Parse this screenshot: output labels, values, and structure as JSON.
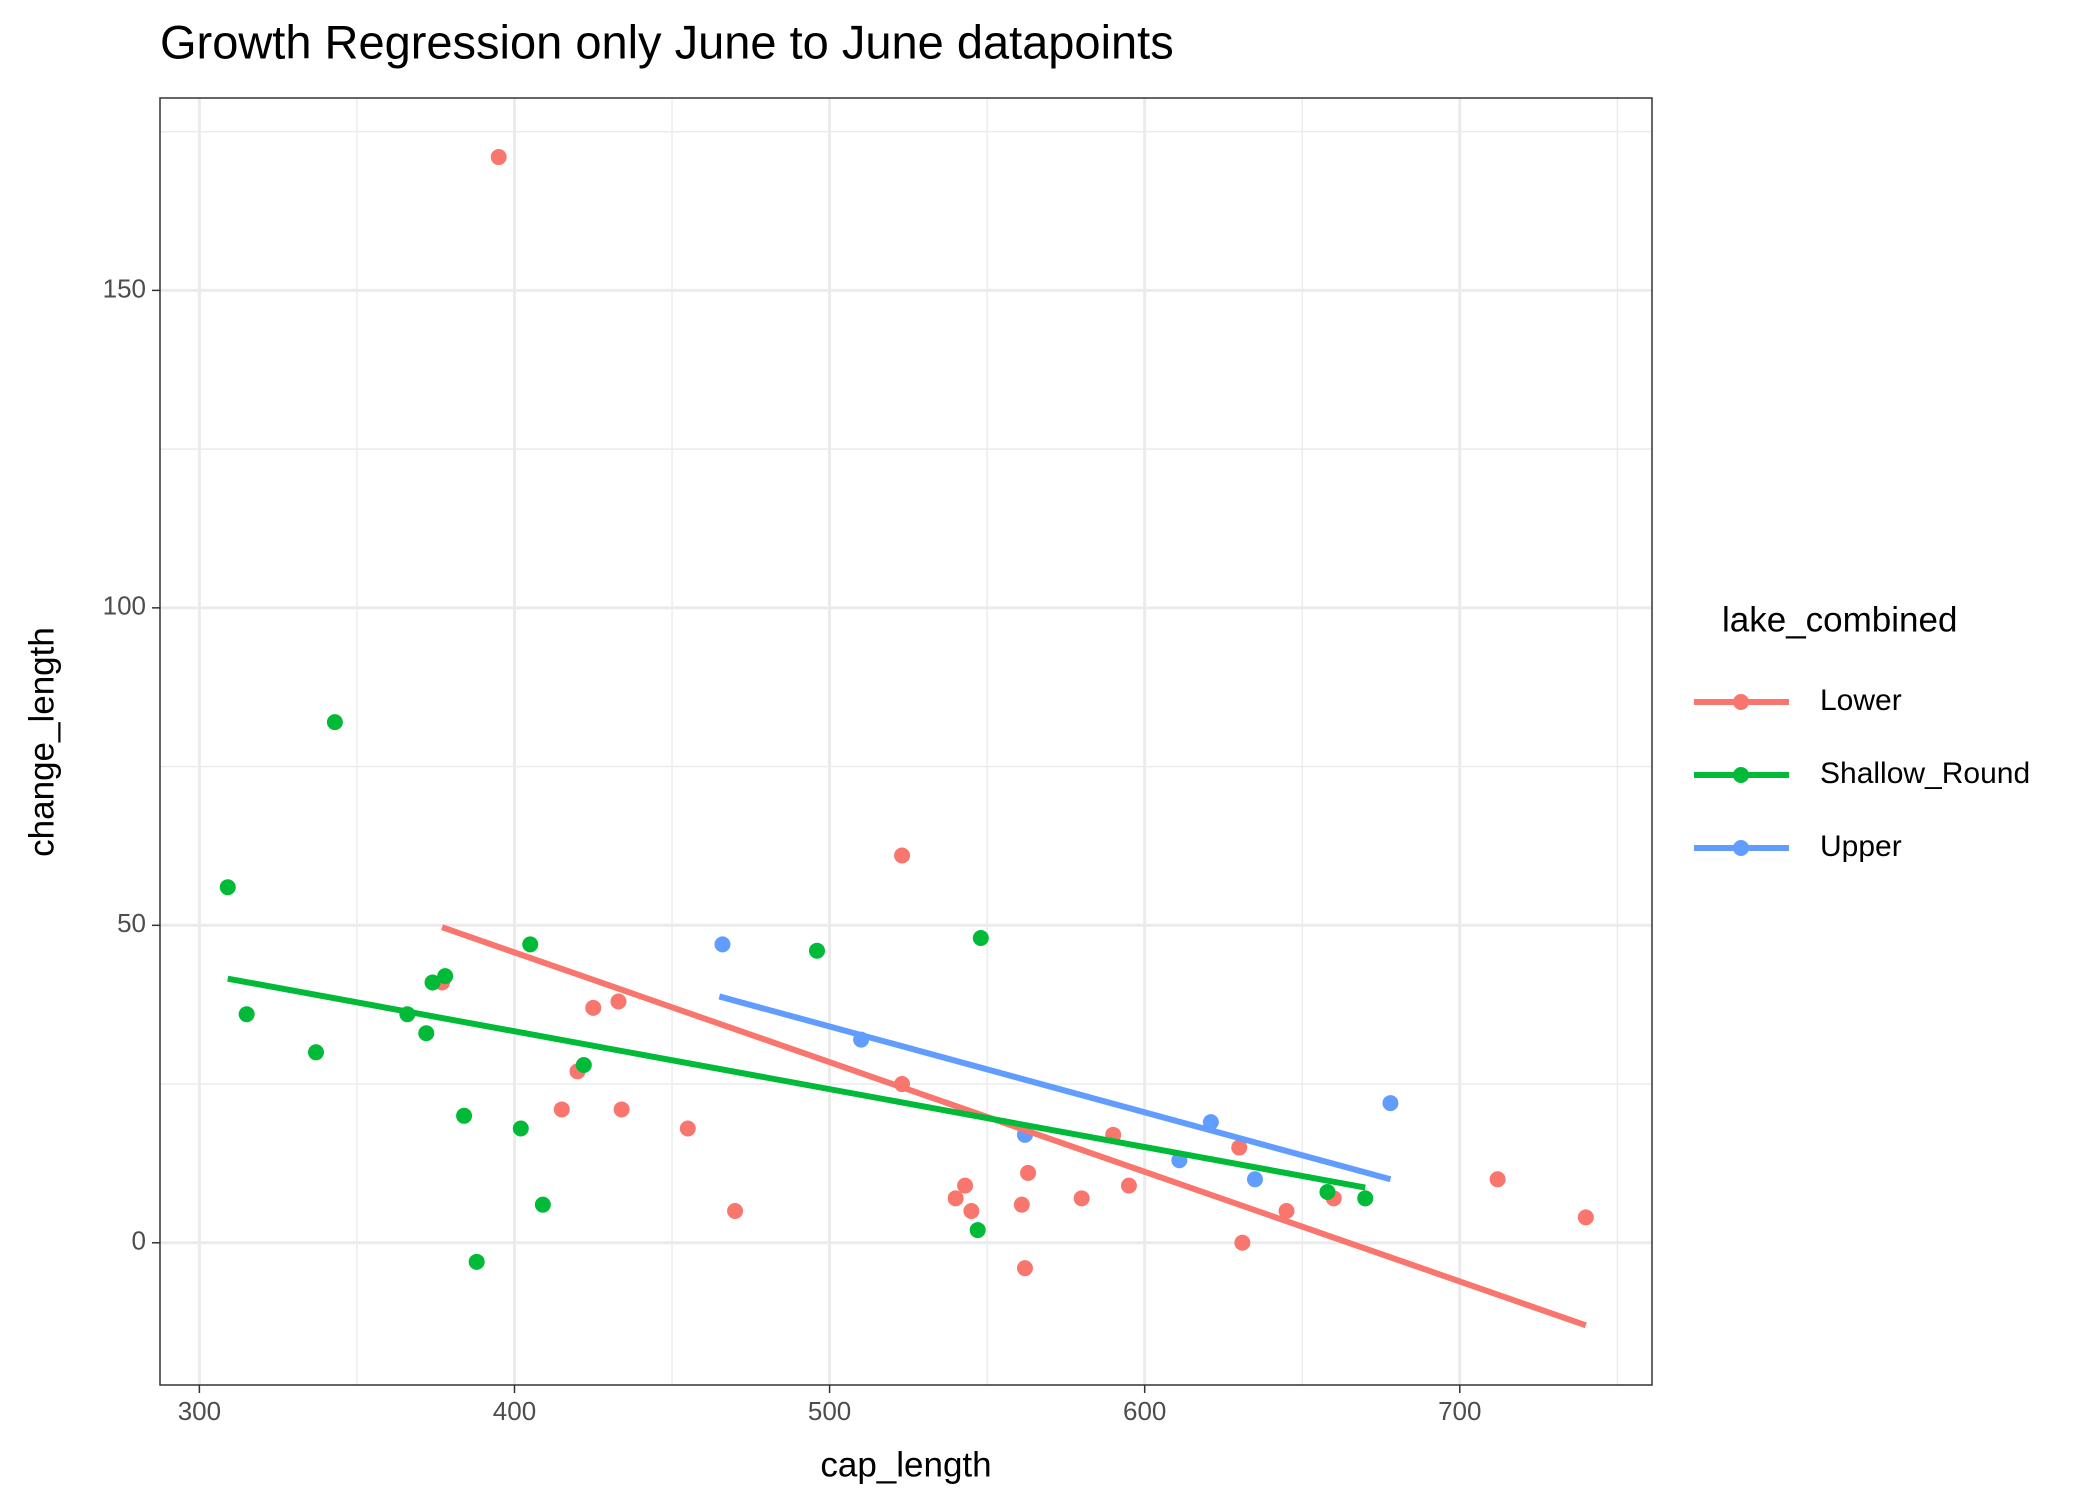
{
  "chart_data": {
    "type": "scatter",
    "title": "Growth Regression only June to June datapoints",
    "x_label": "cap_length",
    "y_label": "change_length",
    "legend_title": "lake_combined",
    "legend": "right",
    "grid": true,
    "xlim": [
      287.5,
      761
    ],
    "ylim": [
      -22.4,
      180.3
    ],
    "xticks": [
      300,
      400,
      500,
      600,
      700
    ],
    "yticks": [
      0,
      50,
      100,
      150
    ],
    "x_minor_ticks": [
      350,
      450,
      550,
      650,
      750
    ],
    "y_minor_ticks": [
      25,
      75,
      125,
      175
    ],
    "series": [
      {
        "name": "Lower",
        "color": "#f8766d",
        "x": [
          395,
          377,
          425,
          433,
          420,
          415,
          434,
          455,
          470,
          523,
          523,
          540,
          543,
          545,
          561,
          563,
          562,
          580,
          590,
          595,
          630,
          631,
          645,
          660,
          712,
          740
        ],
        "values": [
          171,
          41,
          37,
          38,
          27,
          21,
          21,
          18,
          5,
          61,
          25,
          7,
          9,
          5,
          6,
          11,
          -4,
          7,
          17,
          9,
          15,
          0,
          5,
          7,
          10,
          4
        ],
        "fit_x": [
          377,
          740
        ],
        "fit_y": [
          49.7,
          -13
        ]
      },
      {
        "name": "Shallow_Round",
        "color": "#00ba38",
        "x": [
          309,
          315,
          337,
          343,
          366,
          372,
          374,
          378,
          384,
          388,
          402,
          405,
          409,
          422,
          496,
          547,
          548,
          658,
          670
        ],
        "values": [
          56,
          36,
          30,
          82,
          36,
          33,
          41,
          42,
          20,
          -3,
          18,
          47,
          6,
          28,
          46,
          2,
          48,
          8,
          7
        ],
        "fit_x": [
          309,
          670
        ],
        "fit_y": [
          41.6,
          8.7
        ]
      },
      {
        "name": "Upper",
        "color": "#619cff",
        "x": [
          466,
          510,
          562,
          611,
          621,
          635,
          678
        ],
        "values": [
          47,
          32,
          17,
          13,
          19,
          10,
          22
        ],
        "fit_x": [
          465,
          678
        ],
        "fit_y": [
          38.8,
          10.0
        ]
      }
    ]
  }
}
